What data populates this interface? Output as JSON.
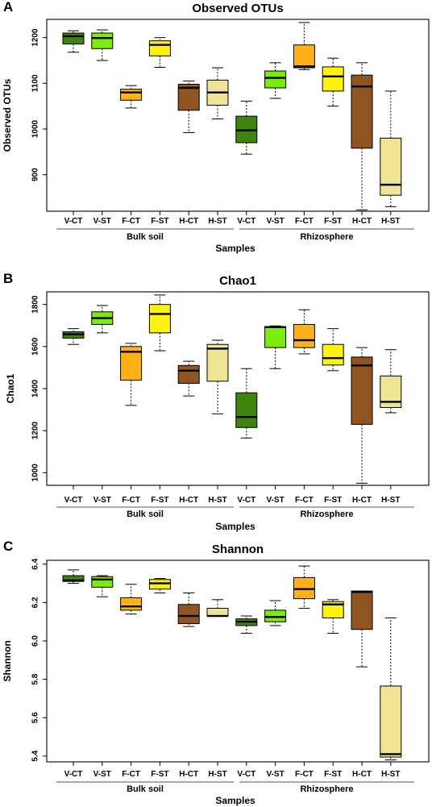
{
  "figure": {
    "colors": {
      "V-CT": "#3f840c",
      "V-ST": "#7cec0f",
      "F-CT": "#ffb118",
      "F-ST": "#fff20f",
      "H-CT": "#8f5420",
      "H-ST": "#efe496"
    }
  },
  "chart_data": [
    {
      "type": "box",
      "letter": "A",
      "title": "Observed OTUs",
      "ylabel": "Observed OTUs",
      "xlabel": "Samples",
      "ylim": [
        820,
        1240
      ],
      "yticks": [
        900,
        1000,
        1100,
        1200
      ],
      "ytick_labels": [
        "900",
        "1000",
        "1100",
        "1200"
      ],
      "groups": [
        "Bulk soil",
        "Rhizosphere"
      ],
      "categories": [
        "V-CT",
        "V-ST",
        "F-CT",
        "F-ST",
        "H-CT",
        "H-ST",
        "V-CT",
        "V-ST",
        "F-CT",
        "F-ST",
        "H-CT",
        "H-ST"
      ],
      "boxes": [
        {
          "min": 1168,
          "q1": 1186,
          "median": 1203,
          "q3": 1210,
          "max": 1215
        },
        {
          "min": 1150,
          "q1": 1176,
          "median": 1199,
          "q3": 1210,
          "max": 1217
        },
        {
          "min": 1046,
          "q1": 1063,
          "median": 1080,
          "q3": 1087,
          "max": 1095
        },
        {
          "min": 1135,
          "q1": 1160,
          "median": 1184,
          "q3": 1193,
          "max": 1200
        },
        {
          "min": 992,
          "q1": 1041,
          "median": 1090,
          "q3": 1098,
          "max": 1105
        },
        {
          "min": 1022,
          "q1": 1052,
          "median": 1080,
          "q3": 1107,
          "max": 1134
        },
        {
          "min": 945,
          "q1": 970,
          "median": 997,
          "q3": 1028,
          "max": 1061
        },
        {
          "min": 1067,
          "q1": 1090,
          "median": 1112,
          "q3": 1127,
          "max": 1145
        },
        {
          "min": 1130,
          "q1": 1134,
          "median": 1137,
          "q3": 1184,
          "max": 1233
        },
        {
          "min": 1050,
          "q1": 1083,
          "median": 1115,
          "q3": 1136,
          "max": 1155
        },
        {
          "min": 823,
          "q1": 958,
          "median": 1093,
          "q3": 1118,
          "max": 1145
        },
        {
          "min": 830,
          "q1": 855,
          "median": 878,
          "q3": 980,
          "max": 1083
        }
      ]
    },
    {
      "type": "box",
      "letter": "B",
      "title": "Chao1",
      "ylabel": "Chao1",
      "xlabel": "Samples",
      "ylim": [
        940,
        1860
      ],
      "yticks": [
        1000,
        1200,
        1400,
        1600,
        1800
      ],
      "ytick_labels": [
        "1000",
        "1200",
        "1400",
        "1600",
        "1800"
      ],
      "groups": [
        "Bulk soil",
        "Rhizosphere"
      ],
      "categories": [
        "V-CT",
        "V-ST",
        "F-CT",
        "F-ST",
        "H-CT",
        "H-ST",
        "V-CT",
        "V-ST",
        "F-CT",
        "F-ST",
        "H-CT",
        "H-ST"
      ],
      "boxes": [
        {
          "min": 1610,
          "q1": 1640,
          "median": 1658,
          "q3": 1670,
          "max": 1685
        },
        {
          "min": 1665,
          "q1": 1705,
          "median": 1735,
          "q3": 1765,
          "max": 1795
        },
        {
          "min": 1320,
          "q1": 1440,
          "median": 1575,
          "q3": 1600,
          "max": 1615
        },
        {
          "min": 1580,
          "q1": 1665,
          "median": 1755,
          "q3": 1800,
          "max": 1845
        },
        {
          "min": 1365,
          "q1": 1425,
          "median": 1485,
          "q3": 1510,
          "max": 1530
        },
        {
          "min": 1280,
          "q1": 1435,
          "median": 1590,
          "q3": 1610,
          "max": 1630
        },
        {
          "min": 1165,
          "q1": 1215,
          "median": 1265,
          "q3": 1380,
          "max": 1495
        },
        {
          "min": 1495,
          "q1": 1595,
          "median": 1692,
          "q3": 1695,
          "max": 1698
        },
        {
          "min": 1565,
          "q1": 1595,
          "median": 1630,
          "q3": 1705,
          "max": 1775
        },
        {
          "min": 1485,
          "q1": 1512,
          "median": 1545,
          "q3": 1610,
          "max": 1685
        },
        {
          "min": 950,
          "q1": 1230,
          "median": 1510,
          "q3": 1550,
          "max": 1595
        },
        {
          "min": 1285,
          "q1": 1310,
          "median": 1337,
          "q3": 1460,
          "max": 1585
        }
      ]
    },
    {
      "type": "box",
      "letter": "C",
      "title": "Shannon",
      "ylabel": "Shannon",
      "xlabel": "Samples",
      "ylim": [
        5.37,
        6.42
      ],
      "yticks": [
        5.4,
        5.6,
        5.8,
        6.0,
        6.2,
        6.4
      ],
      "ytick_labels": [
        "5.4",
        "5.6",
        "5.8",
        "6.0",
        "6.2",
        "6.4"
      ],
      "groups": [
        "Bulk soil",
        "Rhizosphere"
      ],
      "categories": [
        "V-CT",
        "V-ST",
        "F-CT",
        "F-ST",
        "H-CT",
        "H-ST",
        "V-CT",
        "V-ST",
        "F-CT",
        "F-ST",
        "H-CT",
        "H-ST"
      ],
      "boxes": [
        {
          "min": 6.3,
          "q1": 6.31,
          "median": 6.315,
          "q3": 6.34,
          "max": 6.37
        },
        {
          "min": 6.23,
          "q1": 6.28,
          "median": 6.32,
          "q3": 6.335,
          "max": 6.34
        },
        {
          "min": 6.14,
          "q1": 6.16,
          "median": 6.18,
          "q3": 6.225,
          "max": 6.295
        },
        {
          "min": 6.25,
          "q1": 6.27,
          "median": 6.3,
          "q3": 6.32,
          "max": 6.325
        },
        {
          "min": 6.075,
          "q1": 6.09,
          "median": 6.13,
          "q3": 6.19,
          "max": 6.25
        },
        {
          "min": 6.13,
          "q1": 6.13,
          "median": 6.13,
          "q3": 6.17,
          "max": 6.215
        },
        {
          "min": 6.04,
          "q1": 6.08,
          "median": 6.1,
          "q3": 6.115,
          "max": 6.13
        },
        {
          "min": 6.08,
          "q1": 6.1,
          "median": 6.125,
          "q3": 6.16,
          "max": 6.21
        },
        {
          "min": 6.17,
          "q1": 6.22,
          "median": 6.27,
          "q3": 6.33,
          "max": 6.39
        },
        {
          "min": 6.04,
          "q1": 6.12,
          "median": 6.19,
          "q3": 6.205,
          "max": 6.215
        },
        {
          "min": 5.865,
          "q1": 6.06,
          "median": 6.255,
          "q3": 6.26,
          "max": 6.26
        },
        {
          "min": 5.38,
          "q1": 5.395,
          "median": 5.41,
          "q3": 5.765,
          "max": 6.12
        }
      ]
    }
  ]
}
